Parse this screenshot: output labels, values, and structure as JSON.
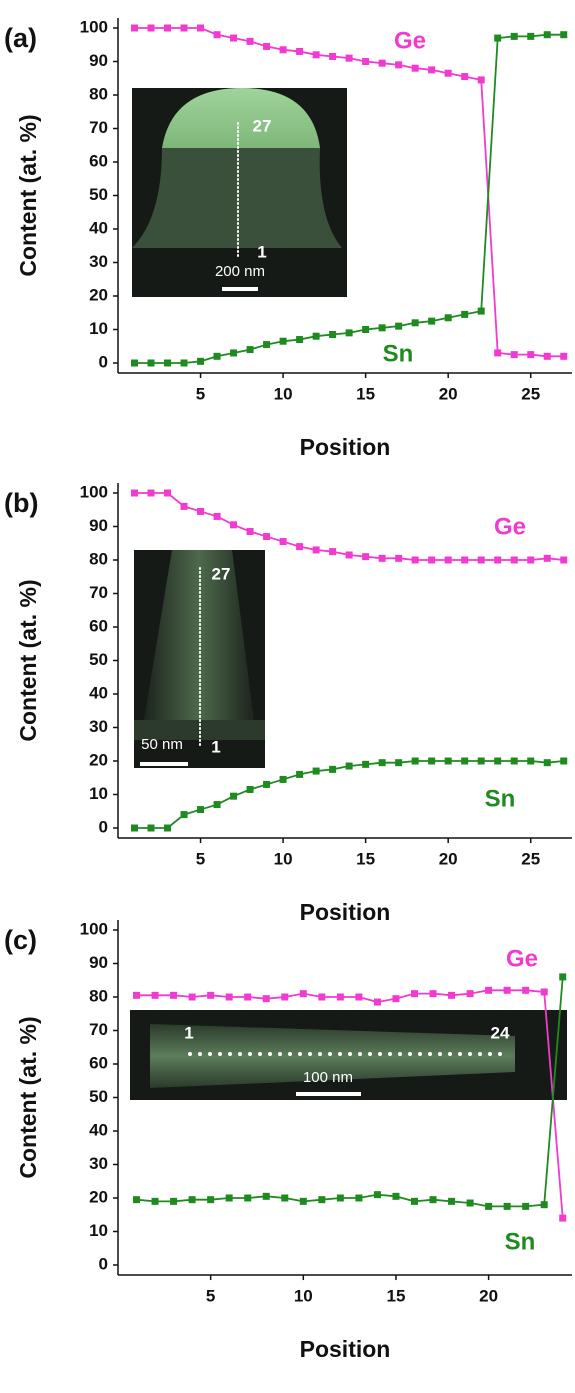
{
  "chart_data": [
    {
      "type": "line",
      "panel": "(a)",
      "xlabel": "Position",
      "ylabel": "Content (at. %)",
      "x": [
        1,
        2,
        3,
        4,
        5,
        6,
        7,
        8,
        9,
        10,
        11,
        12,
        13,
        14,
        15,
        16,
        17,
        18,
        19,
        20,
        21,
        22,
        23,
        24,
        25,
        26,
        27
      ],
      "xlim": [
        0,
        27.5
      ],
      "xticks": [
        5,
        10,
        15,
        20,
        25
      ],
      "ylim": [
        -3,
        103
      ],
      "yticks": [
        0,
        10,
        20,
        30,
        40,
        50,
        60,
        70,
        80,
        90,
        100
      ],
      "series": [
        {
          "name": "Ge",
          "color": "#f03ad0",
          "values": [
            100,
            100,
            100,
            100,
            100,
            98,
            97,
            96,
            94.5,
            93.5,
            93,
            92,
            91.5,
            91,
            90,
            89.5,
            89,
            88,
            87.5,
            86.5,
            85.5,
            84.5,
            3,
            2.5,
            2.5,
            2,
            2
          ]
        },
        {
          "name": "Sn",
          "color": "#1f8a1f",
          "values": [
            0,
            0,
            0,
            0,
            0.5,
            2,
            3,
            4,
            5.5,
            6.5,
            7,
            8,
            8.5,
            9,
            10,
            10.5,
            11,
            12,
            12.5,
            13.5,
            14.5,
            15.5,
            97,
            97.5,
            97.5,
            98,
            98
          ]
        }
      ],
      "inset": {
        "labels": [
          "27",
          "1"
        ],
        "scale_bar": "200 nm"
      }
    },
    {
      "type": "line",
      "panel": "(b)",
      "xlabel": "Position",
      "ylabel": "Content (at. %)",
      "x": [
        1,
        2,
        3,
        4,
        5,
        6,
        7,
        8,
        9,
        10,
        11,
        12,
        13,
        14,
        15,
        16,
        17,
        18,
        19,
        20,
        21,
        22,
        23,
        24,
        25,
        26,
        27
      ],
      "xlim": [
        0,
        27.5
      ],
      "xticks": [
        5,
        10,
        15,
        20,
        25
      ],
      "ylim": [
        -3,
        103
      ],
      "yticks": [
        0,
        10,
        20,
        30,
        40,
        50,
        60,
        70,
        80,
        90,
        100
      ],
      "series": [
        {
          "name": "Ge",
          "color": "#f03ad0",
          "values": [
            100,
            100,
            100,
            96,
            94.5,
            93,
            90.5,
            88.5,
            87,
            85.5,
            84,
            83,
            82.5,
            81.5,
            81,
            80.5,
            80.5,
            80,
            80,
            80,
            80,
            80,
            80,
            80,
            80,
            80.5,
            80
          ]
        },
        {
          "name": "Sn",
          "color": "#1f8a1f",
          "values": [
            0,
            0,
            0,
            4,
            5.5,
            7,
            9.5,
            11.5,
            13,
            14.5,
            16,
            17,
            17.5,
            18.5,
            19,
            19.5,
            19.5,
            20,
            20,
            20,
            20,
            20,
            20,
            20,
            20,
            19.5,
            20
          ]
        }
      ],
      "inset": {
        "labels": [
          "27",
          "1"
        ],
        "scale_bar": "50 nm"
      }
    },
    {
      "type": "line",
      "panel": "(c)",
      "xlabel": "Position",
      "ylabel": "Content (at. %)",
      "x": [
        1,
        2,
        3,
        4,
        5,
        6,
        7,
        8,
        9,
        10,
        11,
        12,
        13,
        14,
        15,
        16,
        17,
        18,
        19,
        20,
        21,
        22,
        23,
        24
      ],
      "xlim": [
        0,
        24.5
      ],
      "xticks": [
        5,
        10,
        15,
        20
      ],
      "ylim": [
        -3,
        103
      ],
      "yticks": [
        0,
        10,
        20,
        30,
        40,
        50,
        60,
        70,
        80,
        90,
        100
      ],
      "series": [
        {
          "name": "Ge",
          "color": "#f03ad0",
          "values": [
            80.5,
            80.5,
            80.5,
            80,
            80.5,
            80,
            80,
            79.5,
            80,
            81,
            80,
            80,
            80,
            78.5,
            79.5,
            81,
            81,
            80.5,
            81,
            82,
            82,
            82,
            81.5,
            14
          ]
        },
        {
          "name": "Sn",
          "color": "#1f8a1f",
          "values": [
            19.5,
            19,
            19,
            19.5,
            19.5,
            20,
            20,
            20.5,
            20,
            19,
            19.5,
            20,
            20,
            21,
            20.5,
            19,
            19.5,
            19,
            18.5,
            17.5,
            17.5,
            17.5,
            18,
            86
          ]
        }
      ],
      "inset": {
        "labels": [
          "1",
          "24"
        ],
        "scale_bar": "100 nm"
      }
    }
  ]
}
